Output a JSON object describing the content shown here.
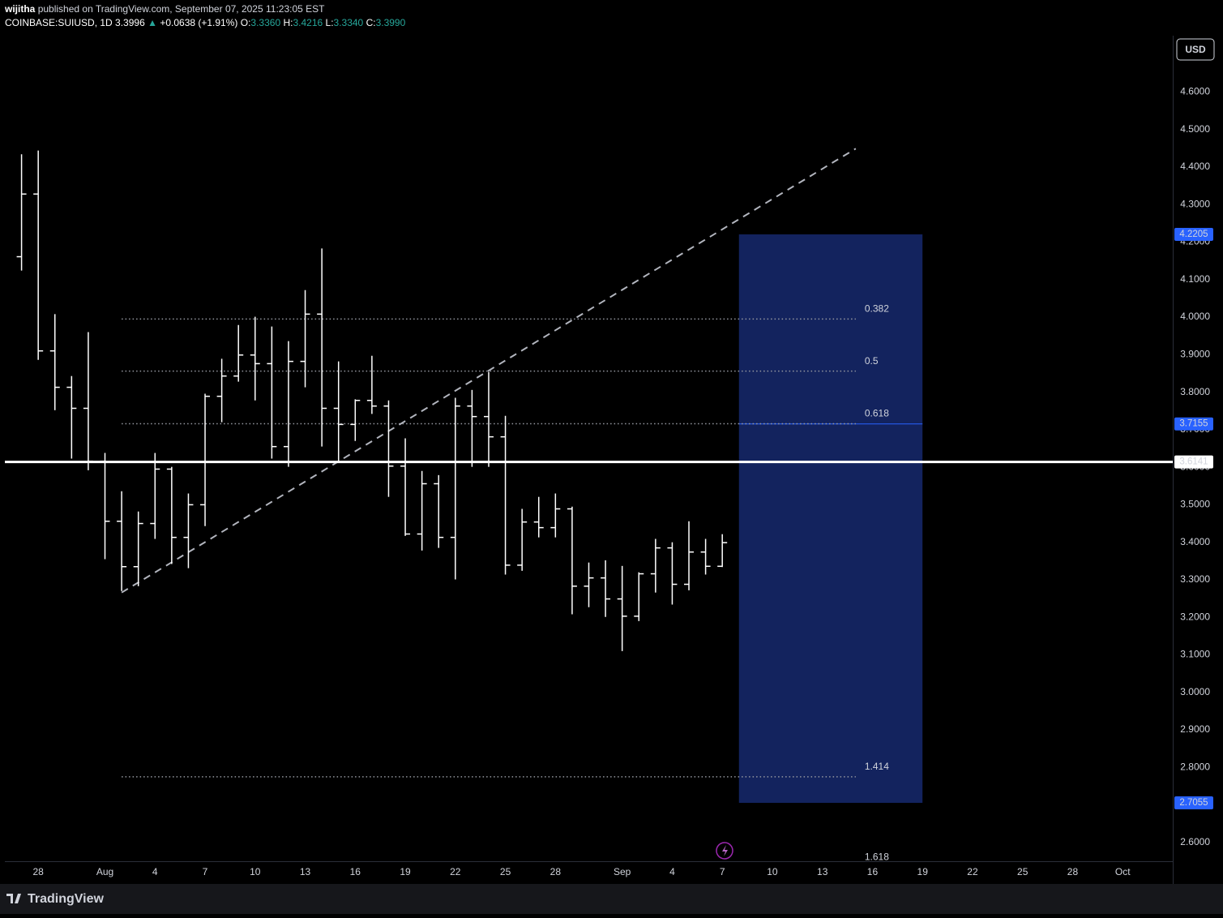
{
  "header": {
    "author": "wijitha",
    "published": "published on TradingView.com, September 07, 2025 11:23:05 EST",
    "symbol": "COINBASE:SUIUSD, 1D",
    "last": "3.3996",
    "arrow": "▲",
    "change": "+0.0638 (+1.91%)",
    "o_label": "O:",
    "o": "3.3360",
    "h_label": "H:",
    "h": "3.4216",
    "l_label": "L:",
    "l": "3.3340",
    "c_label": "C:",
    "c": "3.3990"
  },
  "currency": "USD",
  "brand": "TradingView",
  "chart_data": {
    "type": "ohlc",
    "color": "#ffffff",
    "x": [
      "2025-07-27",
      "2025-07-28",
      "2025-07-29",
      "2025-07-30",
      "2025-07-31",
      "2025-08-01",
      "2025-08-02",
      "2025-08-03",
      "2025-08-04",
      "2025-08-05",
      "2025-08-06",
      "2025-08-07",
      "2025-08-08",
      "2025-08-09",
      "2025-08-10",
      "2025-08-11",
      "2025-08-12",
      "2025-08-13",
      "2025-08-14",
      "2025-08-15",
      "2025-08-16",
      "2025-08-17",
      "2025-08-18",
      "2025-08-19",
      "2025-08-20",
      "2025-08-21",
      "2025-08-22",
      "2025-08-23",
      "2025-08-24",
      "2025-08-25",
      "2025-08-26",
      "2025-08-27",
      "2025-08-28",
      "2025-08-29",
      "2025-08-30",
      "2025-08-31",
      "2025-09-01",
      "2025-09-02",
      "2025-09-03",
      "2025-09-04",
      "2025-09-05",
      "2025-09-06",
      "2025-09-07"
    ],
    "open": [
      4.161,
      4.328,
      3.91,
      3.813,
      3.757,
      3.616,
      3.456,
      3.335,
      3.45,
      3.595,
      3.413,
      3.5,
      3.789,
      3.843,
      3.899,
      3.876,
      3.655,
      3.882,
      4.008,
      3.757,
      3.714,
      3.778,
      3.763,
      3.603,
      3.422,
      3.556,
      3.413,
      3.763,
      3.735,
      3.681,
      3.339,
      3.454,
      3.439,
      3.489,
      3.283,
      3.305,
      3.249,
      3.203,
      3.316,
      3.385,
      3.288,
      3.374,
      3.336
    ],
    "high": [
      4.434,
      4.444,
      4.008,
      3.843,
      3.96,
      3.638,
      3.536,
      3.482,
      3.638,
      3.601,
      3.53,
      3.796,
      3.889,
      3.979,
      4.001,
      3.975,
      3.936,
      4.072,
      4.183,
      3.882,
      3.781,
      3.897,
      3.778,
      3.677,
      3.59,
      3.579,
      3.785,
      3.806,
      3.854,
      3.737,
      3.489,
      3.521,
      3.53,
      3.495,
      3.346,
      3.352,
      3.337,
      3.32,
      3.409,
      3.4,
      3.456,
      3.409,
      3.4216
    ],
    "low": [
      4.124,
      3.886,
      3.752,
      3.623,
      3.592,
      3.355,
      3.27,
      3.283,
      3.409,
      3.342,
      3.331,
      3.443,
      3.72,
      3.828,
      3.778,
      3.623,
      3.601,
      3.813,
      3.655,
      3.616,
      3.67,
      3.742,
      3.521,
      3.417,
      3.378,
      3.385,
      3.301,
      3.601,
      3.601,
      3.314,
      3.324,
      3.413,
      3.413,
      3.208,
      3.227,
      3.201,
      3.11,
      3.19,
      3.266,
      3.234,
      3.272,
      3.314,
      3.334
    ],
    "close": [
      4.328,
      3.91,
      3.813,
      3.757,
      3.616,
      3.456,
      3.335,
      3.45,
      3.595,
      3.413,
      3.5,
      3.789,
      3.843,
      3.899,
      3.876,
      3.655,
      3.882,
      4.008,
      3.757,
      3.714,
      3.778,
      3.763,
      3.603,
      3.422,
      3.556,
      3.413,
      3.763,
      3.735,
      3.681,
      3.339,
      3.454,
      3.439,
      3.489,
      3.283,
      3.305,
      3.249,
      3.203,
      3.316,
      3.385,
      3.288,
      3.374,
      3.336,
      3.399
    ],
    "xlim": [
      "2025-07-26",
      "2025-10-04"
    ],
    "ylim": [
      2.55,
      4.75
    ],
    "yticks": [
      {
        "value": 4.6,
        "label": "4.6000"
      },
      {
        "value": 4.5,
        "label": "4.5000"
      },
      {
        "value": 4.4,
        "label": "4.4000"
      },
      {
        "value": 4.3,
        "label": "4.3000"
      },
      {
        "value": 4.2,
        "label": "4.2000"
      },
      {
        "value": 4.1,
        "label": "4.1000"
      },
      {
        "value": 4.0,
        "label": "4.0000"
      },
      {
        "value": 3.9,
        "label": "3.9000"
      },
      {
        "value": 3.8,
        "label": "3.8000"
      },
      {
        "value": 3.7,
        "label": "3.7000"
      },
      {
        "value": 3.6,
        "label": "3.6000"
      },
      {
        "value": 3.5,
        "label": "3.5000"
      },
      {
        "value": 3.4,
        "label": "3.4000"
      },
      {
        "value": 3.3,
        "label": "3.3000"
      },
      {
        "value": 3.2,
        "label": "3.2000"
      },
      {
        "value": 3.1,
        "label": "3.1000"
      },
      {
        "value": 3.0,
        "label": "3.0000"
      },
      {
        "value": 2.9,
        "label": "2.9000"
      },
      {
        "value": 2.8,
        "label": "2.8000"
      },
      {
        "value": 2.7,
        "label": "2.7000"
      },
      {
        "value": 2.6,
        "label": "2.6000"
      }
    ],
    "xticks": [
      {
        "value": "2025-07-28",
        "label": "28"
      },
      {
        "value": "2025-08-01",
        "label": "Aug"
      },
      {
        "value": "2025-08-04",
        "label": "4"
      },
      {
        "value": "2025-08-07",
        "label": "7"
      },
      {
        "value": "2025-08-10",
        "label": "10"
      },
      {
        "value": "2025-08-13",
        "label": "13"
      },
      {
        "value": "2025-08-16",
        "label": "16"
      },
      {
        "value": "2025-08-19",
        "label": "19"
      },
      {
        "value": "2025-08-22",
        "label": "22"
      },
      {
        "value": "2025-08-25",
        "label": "25"
      },
      {
        "value": "2025-08-28",
        "label": "28"
      },
      {
        "value": "2025-09-01",
        "label": "Sep"
      },
      {
        "value": "2025-09-04",
        "label": "4"
      },
      {
        "value": "2025-09-07",
        "label": "7"
      },
      {
        "value": "2025-09-10",
        "label": "10"
      },
      {
        "value": "2025-09-13",
        "label": "13"
      },
      {
        "value": "2025-09-16",
        "label": "16"
      },
      {
        "value": "2025-09-19",
        "label": "19"
      },
      {
        "value": "2025-09-22",
        "label": "22"
      },
      {
        "value": "2025-09-25",
        "label": "25"
      },
      {
        "value": "2025-09-28",
        "label": "28"
      },
      {
        "value": "2025-10-01",
        "label": "Oct"
      }
    ],
    "grid": false,
    "price_line": {
      "value": 3.6141,
      "label": "3.6141"
    },
    "trendline": {
      "x": [
        "2025-08-02",
        "2025-09-15"
      ],
      "y": [
        3.266,
        4.449
      ]
    },
    "fib": {
      "x": [
        "2025-08-02",
        "2025-09-15"
      ],
      "levels": [
        {
          "label": "0.382",
          "value": 3.995
        },
        {
          "label": "0.5",
          "value": 3.856
        },
        {
          "label": "0.618",
          "value": 3.716
        },
        {
          "label": "1.414",
          "value": 2.775
        },
        {
          "label": "1.618",
          "value": 2.534
        }
      ]
    },
    "box": {
      "x": [
        "2025-09-08",
        "2025-09-19"
      ],
      "top": {
        "value": 4.2205,
        "label": "4.2205"
      },
      "mid": {
        "value": 3.7155,
        "label": "3.7155"
      },
      "bottom": {
        "value": 2.7055,
        "label": "2.7055"
      }
    }
  }
}
